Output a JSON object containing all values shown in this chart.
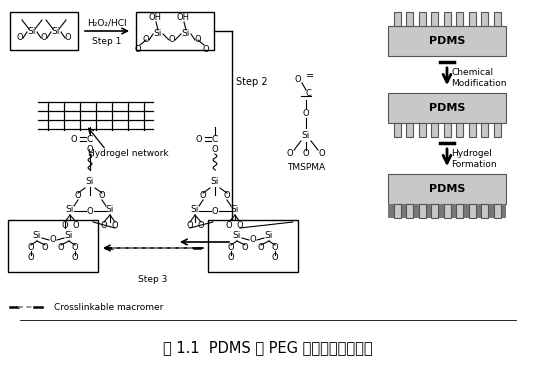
{
  "title": "图 1.1  PDMS 基 PEG 复合水凝胶合成图",
  "title_fontsize": 10.5,
  "bg_color": "#ffffff",
  "text_color": "#000000",
  "gray_light": "#c8c8c8",
  "gray_medium": "#888888",
  "gray_dark": "#555555",
  "step1_label": "Step 1",
  "step2_label": "Step 2",
  "step3_label": "Step 3",
  "h2o2_label": "H₂O₂/HCl",
  "hydrogel_network_label": "Hydrogel network",
  "tmspma_label": "TMSPMA",
  "chemical_mod_label": "Chemical\nModification",
  "hydrogel_form_label": "Hydrogel\nFormation",
  "pdms_label": "PDMS",
  "crosslink_label": "Crosslinkable macromer",
  "fig_w": 5.36,
  "fig_h": 3.75,
  "dpi": 100
}
